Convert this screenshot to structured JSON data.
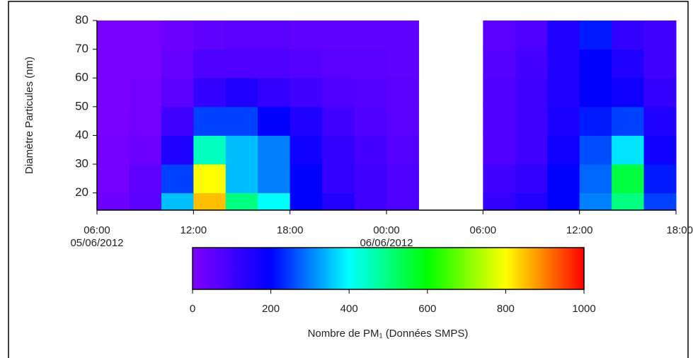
{
  "chart_data": {
    "type": "heatmap",
    "ylabel": "Diamètre Particules (nm)",
    "colorbar_label": "Nombre de PM₁ (Données SMPS)",
    "x": [
      "2012-06-05 07:00",
      "2012-06-05 09:00",
      "2012-06-05 11:00",
      "2012-06-05 13:00",
      "2012-06-05 15:00",
      "2012-06-05 17:00",
      "2012-06-05 19:00",
      "2012-06-05 21:00",
      "2012-06-05 23:00",
      "2012-06-06 01:00",
      "2012-06-06 03:00",
      "2012-06-06 05:00",
      "2012-06-06 07:00",
      "2012-06-06 09:00",
      "2012-06-06 11:00",
      "2012-06-06 13:00",
      "2012-06-06 15:00",
      "2012-06-06 17:00"
    ],
    "y_bins": [
      14,
      20,
      30,
      40,
      50,
      60,
      70,
      80
    ],
    "z": [
      [
        30,
        60,
        350,
        850,
        500,
        400,
        200,
        150,
        100,
        80,
        null,
        null,
        120,
        150,
        200,
        300,
        500,
        250
      ],
      [
        20,
        50,
        250,
        800,
        350,
        300,
        200,
        120,
        100,
        80,
        null,
        null,
        100,
        120,
        200,
        280,
        550,
        220
      ],
      [
        15,
        30,
        150,
        450,
        350,
        300,
        180,
        120,
        90,
        70,
        null,
        null,
        80,
        100,
        180,
        260,
        380,
        180
      ],
      [
        10,
        20,
        100,
        250,
        250,
        200,
        150,
        100,
        80,
        60,
        null,
        null,
        80,
        100,
        160,
        220,
        250,
        150
      ],
      [
        10,
        15,
        60,
        120,
        150,
        120,
        100,
        80,
        70,
        60,
        null,
        null,
        80,
        100,
        150,
        200,
        180,
        120
      ],
      [
        10,
        10,
        40,
        80,
        80,
        80,
        70,
        60,
        60,
        50,
        null,
        null,
        70,
        90,
        150,
        200,
        150,
        100
      ],
      [
        10,
        10,
        30,
        50,
        60,
        60,
        50,
        50,
        50,
        50,
        null,
        null,
        60,
        80,
        150,
        220,
        120,
        100
      ]
    ],
    "xlim": [
      "2012-06-05 06:00",
      "2012-06-06 18:00"
    ],
    "xticks": [
      {
        "value": "2012-06-05 06:00",
        "label": "06:00\n05/06/2012"
      },
      {
        "value": "2012-06-05 12:00",
        "label": "12:00"
      },
      {
        "value": "2012-06-05 18:00",
        "label": "18:00"
      },
      {
        "value": "2012-06-06 00:00",
        "label": "00:00\n06/06/2012"
      },
      {
        "value": "2012-06-06 06:00",
        "label": "06:00"
      },
      {
        "value": "2012-06-06 12:00",
        "label": "12:00"
      },
      {
        "value": "2012-06-06 18:00",
        "label": "18:00"
      }
    ],
    "ylim": [
      14,
      80
    ],
    "yticks": [
      20,
      30,
      40,
      50,
      60,
      70,
      80
    ],
    "zlim": [
      0,
      1000
    ],
    "zticks": [
      0,
      200,
      400,
      600,
      800,
      1000
    ],
    "colorscale": [
      "#8000ff",
      "#0000ff",
      "#00ffff",
      "#00ff00",
      "#ffff00",
      "#ff0000"
    ]
  }
}
